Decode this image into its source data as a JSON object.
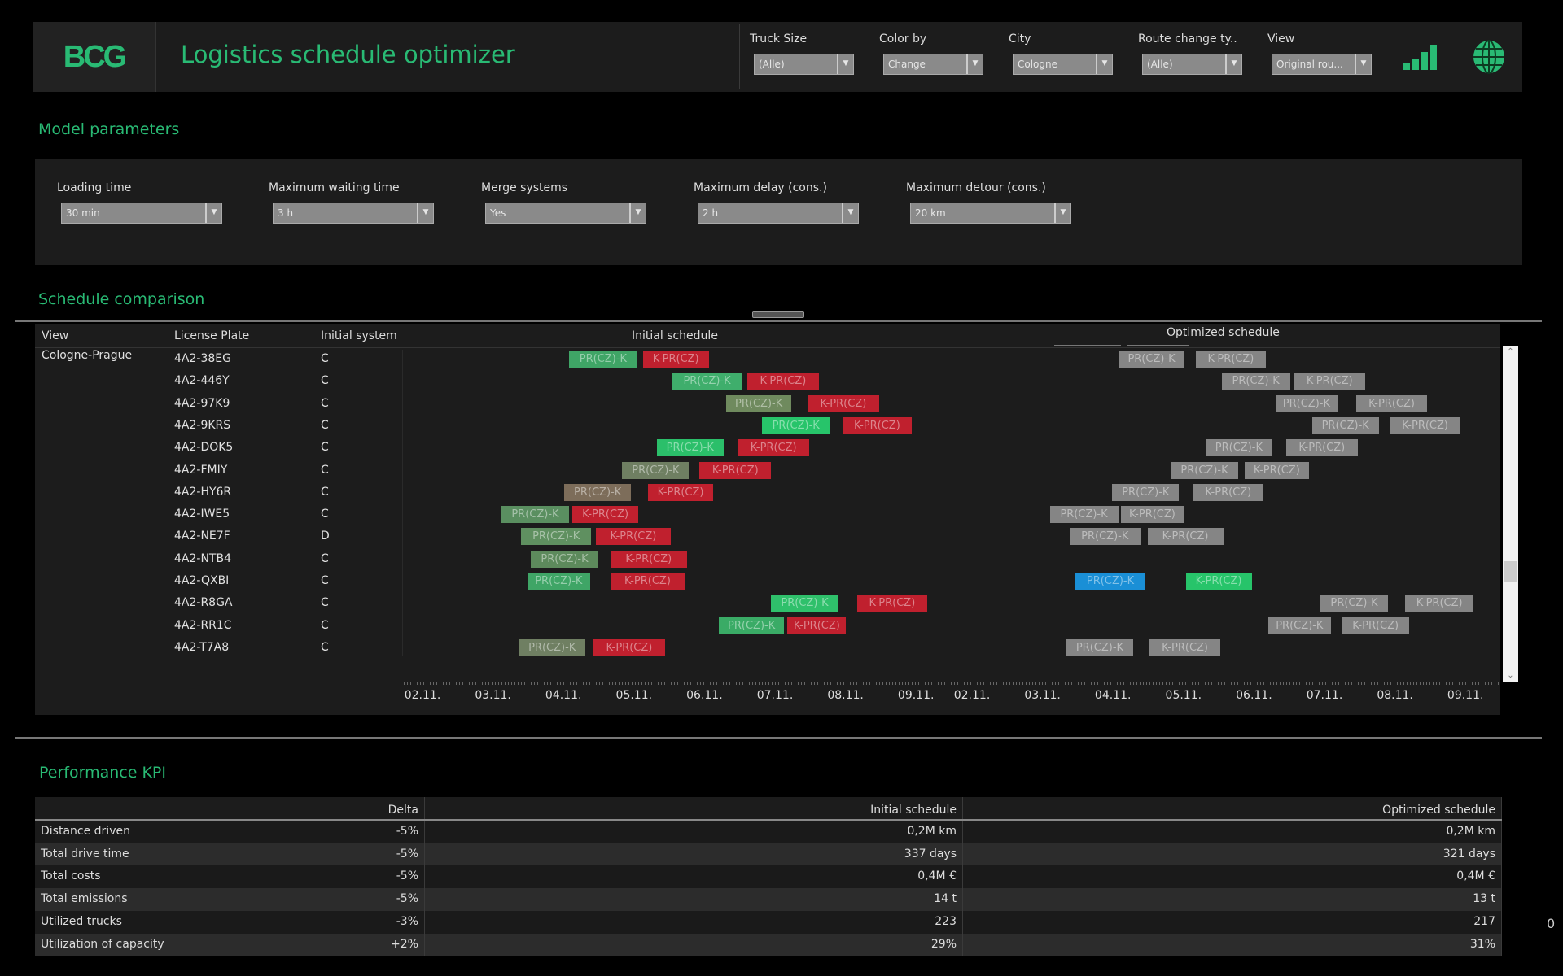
{
  "header": {
    "logo": "BCG",
    "title": "Logistics schedule optimizer",
    "filters": [
      {
        "label": "Truck Size",
        "value": "(Alle)"
      },
      {
        "label": "Color by",
        "value": "Change"
      },
      {
        "label": "City",
        "value": "Cologne"
      },
      {
        "label": "Route change ty..",
        "value": "(Alle)"
      },
      {
        "label": "View",
        "value": "Original rou..."
      }
    ],
    "icons": [
      "signal-bars-icon",
      "globe-icon"
    ],
    "accent": "#29ba74"
  },
  "model_parameters": {
    "title": "Model parameters",
    "params": [
      {
        "label": "Loading time",
        "value": "30 min"
      },
      {
        "label": "Maximum waiting time",
        "value": "3 h"
      },
      {
        "label": "Merge systems",
        "value": "Yes"
      },
      {
        "label": "Maximum delay (cons.)",
        "value": "2 h"
      },
      {
        "label": "Maximum detour (cons.)",
        "value": "20 km"
      }
    ]
  },
  "schedule": {
    "title": "Schedule comparison",
    "headers": {
      "view": "View",
      "plate": "License Plate",
      "system": "Initial system",
      "initial": "Initial schedule",
      "optimized": "Optimized schedule"
    },
    "view": "Cologne-Prague",
    "date_ticks": [
      "02.11.",
      "03.11.",
      "04.11.",
      "05.11.",
      "06.11.",
      "07.11.",
      "08.11.",
      "09.11."
    ],
    "colors": {
      "red": "#c0202e",
      "gray": "#858585",
      "blue": "#1a8fd6",
      "bright_green": "#27c46a"
    },
    "rows": [
      {
        "plate": "4A2-38EG",
        "system": "C",
        "initial": [
          {
            "label": "PR(CZ)-K",
            "start": "04.11. 02:00",
            "end": "05.11. 01:00",
            "color": "#3fa566"
          },
          {
            "label": "K-PR(CZ)",
            "start": "05.11. 03:00",
            "end": "06.11. 01:30",
            "color": "#c0202e"
          }
        ],
        "optimized": [
          {
            "label": "PR(CZ)-K",
            "start": "04.11. 02:00",
            "end": "05.11. 00:15",
            "color": "#858585"
          },
          {
            "label": "K-PR(CZ)",
            "start": "05.11. 04:15",
            "end": "06.11. 04:00",
            "color": "#858585"
          }
        ]
      },
      {
        "plate": "4A2-446Y",
        "system": "C",
        "initial": [
          {
            "label": "PR(CZ)-K",
            "start": "05.11. 13:00",
            "end": "06.11. 12:45",
            "color": "#3fae6c"
          },
          {
            "label": "K-PR(CZ)",
            "start": "06.11. 14:30",
            "end": "07.11. 15:00",
            "color": "#c0202e"
          }
        ],
        "optimized": [
          {
            "label": "PR(CZ)-K",
            "start": "05.11. 13:00",
            "end": "06.11. 12:15",
            "color": "#858585"
          },
          {
            "label": "K-PR(CZ)",
            "start": "06.11. 13:45",
            "end": "07.11. 13:45",
            "color": "#858585"
          }
        ]
      },
      {
        "plate": "4A2-97K9",
        "system": "C",
        "initial": [
          {
            "label": "PR(CZ)-K",
            "start": "06.11. 07:30",
            "end": "07.11. 05:30",
            "color": "#6f8a5e"
          },
          {
            "label": "K-PR(CZ)",
            "start": "07.11. 11:00",
            "end": "08.11. 11:30",
            "color": "#c0202e"
          }
        ],
        "optimized": [
          {
            "label": "PR(CZ)-K",
            "start": "06.11. 07:15",
            "end": "07.11. 04:30",
            "color": "#858585"
          },
          {
            "label": "K-PR(CZ)",
            "start": "07.11. 10:45",
            "end": "08.11. 11:00",
            "color": "#858585"
          }
        ]
      },
      {
        "plate": "4A2-9KRS",
        "system": "C",
        "initial": [
          {
            "label": "PR(CZ)-K",
            "start": "06.11. 19:30",
            "end": "07.11. 18:45",
            "color": "#27c46a"
          },
          {
            "label": "K-PR(CZ)",
            "start": "07.11. 23:00",
            "end": "08.11. 22:30",
            "color": "#c0202e"
          }
        ],
        "optimized": [
          {
            "label": "PR(CZ)-K",
            "start": "06.11. 19:45",
            "end": "07.11. 18:30",
            "color": "#858585"
          },
          {
            "label": "K-PR(CZ)",
            "start": "07.11. 22:15",
            "end": "08.11. 22:15",
            "color": "#858585"
          }
        ]
      },
      {
        "plate": "4A2-DOK5",
        "system": "C",
        "initial": [
          {
            "label": "PR(CZ)-K",
            "start": "05.11. 07:45",
            "end": "06.11. 06:30",
            "color": "#2bbf6a"
          },
          {
            "label": "K-PR(CZ)",
            "start": "06.11. 11:15",
            "end": "07.11. 11:45",
            "color": "#c0202e"
          }
        ],
        "optimized": [
          {
            "label": "PR(CZ)-K",
            "start": "05.11. 07:30",
            "end": "06.11. 06:15",
            "color": "#858585"
          },
          {
            "label": "K-PR(CZ)",
            "start": "06.11. 11:00",
            "end": "07.11. 11:15",
            "color": "#858585"
          }
        ]
      },
      {
        "plate": "4A2-FMIY",
        "system": "C",
        "initial": [
          {
            "label": "PR(CZ)-K",
            "start": "04.11. 20:00",
            "end": "05.11. 18:45",
            "color": "#6f7f62"
          },
          {
            "label": "K-PR(CZ)",
            "start": "05.11. 22:15",
            "end": "06.11. 22:45",
            "color": "#c0202e"
          }
        ],
        "optimized": [
          {
            "label": "PR(CZ)-K",
            "start": "04.11. 19:30",
            "end": "05.11. 18:45",
            "color": "#858585"
          },
          {
            "label": "K-PR(CZ)",
            "start": "05.11. 20:45",
            "end": "06.11. 18:45",
            "color": "#858585"
          }
        ]
      },
      {
        "plate": "4A2-HY6R",
        "system": "C",
        "initial": [
          {
            "label": "PR(CZ)-K",
            "start": "04.11. 00:15",
            "end": "04.11. 23:00",
            "color": "#7d6d5a"
          },
          {
            "label": "K-PR(CZ)",
            "start": "05.11. 04:45",
            "end": "06.11. 03:00",
            "color": "#c0202e"
          }
        ],
        "optimized": [
          {
            "label": "PR(CZ)-K",
            "start": "03.11. 23:45",
            "end": "04.11. 22:30",
            "color": "#858585"
          },
          {
            "label": "K-PR(CZ)",
            "start": "05.11. 03:30",
            "end": "06.11. 03:00",
            "color": "#858585"
          }
        ]
      },
      {
        "plate": "4A2-IWE5",
        "system": "C",
        "initial": [
          {
            "label": "PR(CZ)-K",
            "start": "03.11. 03:00",
            "end": "04.11. 01:45",
            "color": "#5a8f60"
          },
          {
            "label": "K-PR(CZ)",
            "start": "04.11. 03:00",
            "end": "05.11. 01:30",
            "color": "#c0202e"
          }
        ],
        "optimized": [
          {
            "label": "PR(CZ)-K",
            "start": "03.11. 02:30",
            "end": "04.11. 01:45",
            "color": "#858585"
          },
          {
            "label": "K-PR(CZ)",
            "start": "04.11. 02:45",
            "end": "05.11. 00:00",
            "color": "#858585"
          }
        ]
      },
      {
        "plate": "4A2-NE7F",
        "system": "D",
        "initial": [
          {
            "label": "PR(CZ)-K",
            "start": "03.11. 09:30",
            "end": "04.11. 09:30",
            "color": "#5f9060"
          },
          {
            "label": "K-PR(CZ)",
            "start": "04.11. 11:00",
            "end": "05.11. 12:30",
            "color": "#c0202e"
          }
        ],
        "optimized": [
          {
            "label": "PR(CZ)-K",
            "start": "03.11. 09:15",
            "end": "04.11. 09:15",
            "color": "#858585"
          },
          {
            "label": "K-PR(CZ)",
            "start": "04.11. 11:45",
            "end": "05.11. 13:30",
            "color": "#858585"
          }
        ]
      },
      {
        "plate": "4A2-NTB4",
        "system": "C",
        "initial": [
          {
            "label": "PR(CZ)-K",
            "start": "03.11. 12:45",
            "end": "04.11. 12:00",
            "color": "#5d8a5c"
          },
          {
            "label": "K-PR(CZ)",
            "start": "04.11. 16:00",
            "end": "05.11. 18:00",
            "color": "#c0202e"
          }
        ],
        "optimized": []
      },
      {
        "plate": "4A2-QXBI",
        "system": "C",
        "initial": [
          {
            "label": "PR(CZ)-K",
            "start": "03.11. 11:45",
            "end": "04.11. 09:00",
            "color": "#3fa566"
          },
          {
            "label": "K-PR(CZ)",
            "start": "04.11. 16:00",
            "end": "05.11. 17:15",
            "color": "#c0202e"
          }
        ],
        "optimized": [
          {
            "label": "PR(CZ)-K",
            "start": "03.11. 11:15",
            "end": "04.11. 11:00",
            "color": "#1a8fd6"
          },
          {
            "label": "K-PR(CZ)",
            "start": "05.11. 00:45",
            "end": "05.11. 23:15",
            "color": "#27c46a"
          }
        ]
      },
      {
        "plate": "4A2-R8GA",
        "system": "C",
        "initial": [
          {
            "label": "PR(CZ)-K",
            "start": "06.11. 22:45",
            "end": "07.11. 21:30",
            "color": "#2fc06b"
          },
          {
            "label": "K-PR(CZ)",
            "start": "08.11. 04:00",
            "end": "09.11. 03:45",
            "color": "#c0202e"
          }
        ],
        "optimized": [
          {
            "label": "PR(CZ)-K",
            "start": "06.11. 22:45",
            "end": "07.11. 21:30",
            "color": "#858585"
          },
          {
            "label": "K-PR(CZ)",
            "start": "08.11. 03:30",
            "end": "09.11. 02:45",
            "color": "#858585"
          }
        ]
      },
      {
        "plate": "4A2-RR1C",
        "system": "C",
        "initial": [
          {
            "label": "PR(CZ)-K",
            "start": "06.11. 05:00",
            "end": "07.11. 03:00",
            "color": "#3aab66"
          },
          {
            "label": "K-PR(CZ)",
            "start": "07.11. 04:15",
            "end": "08.11. 00:15",
            "color": "#c0202e"
          }
        ],
        "optimized": [
          {
            "label": "PR(CZ)-K",
            "start": "06.11. 04:45",
            "end": "07.11. 02:15",
            "color": "#858585"
          },
          {
            "label": "K-PR(CZ)",
            "start": "07.11. 06:00",
            "end": "08.11. 04:45",
            "color": "#858585"
          }
        ]
      },
      {
        "plate": "4A2-T7A8",
        "system": "C",
        "initial": [
          {
            "label": "PR(CZ)-K",
            "start": "03.11. 08:45",
            "end": "04.11. 07:30",
            "color": "#6f7f62"
          },
          {
            "label": "K-PR(CZ)",
            "start": "04.11. 10:15",
            "end": "05.11. 10:30",
            "color": "#c0202e"
          }
        ],
        "optimized": [
          {
            "label": "PR(CZ)-K",
            "start": "03.11. 08:15",
            "end": "04.11. 06:45",
            "color": "#858585"
          },
          {
            "label": "K-PR(CZ)",
            "start": "04.11. 12:30",
            "end": "05.11. 12:30",
            "color": "#858585"
          }
        ]
      }
    ]
  },
  "kpi": {
    "title": "Performance KPI",
    "headers": [
      "",
      "Delta",
      "Initial schedule",
      "Optimized schedule"
    ],
    "rows": [
      [
        "Distance driven",
        "-5%",
        "0,2M km",
        "0,2M km"
      ],
      [
        "Total drive time",
        "-5%",
        "337 days",
        "321 days"
      ],
      [
        "Total costs",
        "-5%",
        "0,4M €",
        "0,4M €"
      ],
      [
        "Total emissions",
        "-5%",
        "14 t",
        "13 t"
      ],
      [
        "Utilized trucks",
        "-3%",
        "223",
        "217"
      ],
      [
        "Utilization of capacity",
        "+2%",
        "29%",
        "31%"
      ]
    ]
  },
  "page_number": "0"
}
